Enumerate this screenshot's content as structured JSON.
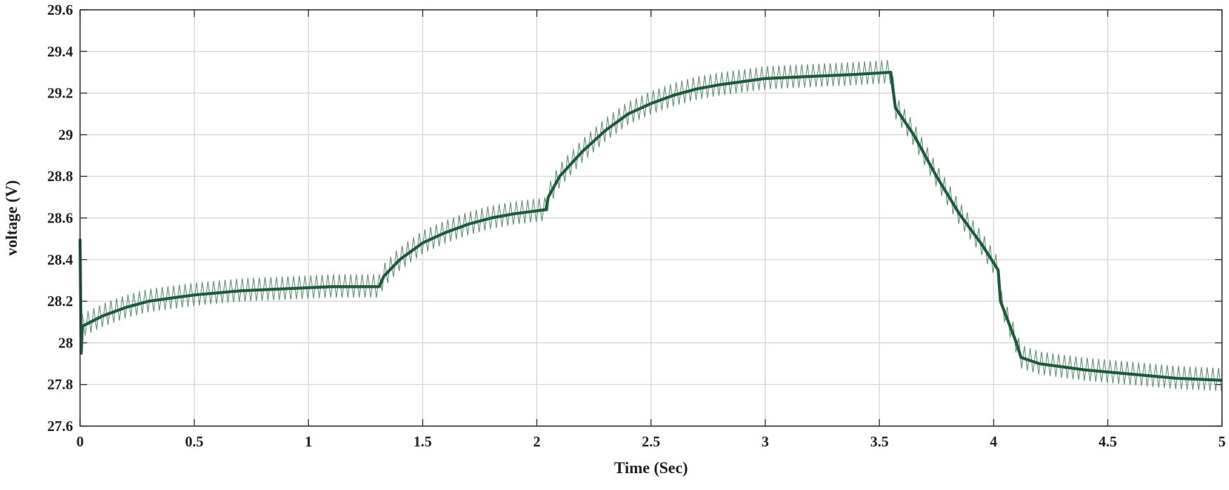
{
  "chart_data": {
    "type": "line",
    "title": "",
    "xlabel": "Time (Sec)",
    "ylabel": "voltage (V)",
    "xlim": [
      0,
      5
    ],
    "ylim": [
      27.6,
      29.6
    ],
    "xticks": [
      0,
      0.5,
      1,
      1.5,
      2,
      2.5,
      3,
      3.5,
      4,
      4.5,
      5
    ],
    "xtick_labels": [
      "0",
      "0.5",
      "1",
      "1.5",
      "2",
      "2.5",
      "3",
      "3.5",
      "4",
      "4.5",
      "5"
    ],
    "yticks": [
      27.6,
      27.8,
      28,
      28.2,
      28.4,
      28.6,
      28.8,
      29,
      29.2,
      29.4,
      29.6
    ],
    "ytick_labels": [
      "27.6",
      "27.8",
      "28",
      "28.2",
      "28.4",
      "28.6",
      "28.8",
      "29",
      "29.2",
      "29.4",
      "29.6"
    ],
    "grid": true,
    "legend": "none",
    "series": [
      {
        "color": "#1f5a3c",
        "ripple_amplitude": 0.07,
        "x": [
          0,
          0.005,
          0.01,
          0.1,
          0.2,
          0.3,
          0.5,
          0.7,
          0.9,
          1.1,
          1.31,
          1.33,
          1.4,
          1.5,
          1.6,
          1.7,
          1.8,
          1.9,
          2.04,
          2.05,
          2.1,
          2.2,
          2.3,
          2.4,
          2.5,
          2.6,
          2.7,
          2.8,
          3.0,
          3.2,
          3.4,
          3.55,
          3.57,
          3.65,
          3.75,
          3.85,
          3.95,
          4.02,
          4.03,
          4.1,
          4.12,
          4.2,
          4.4,
          4.6,
          4.8,
          5.0
        ],
        "y": [
          28.5,
          27.95,
          28.08,
          28.13,
          28.17,
          28.2,
          28.23,
          28.25,
          28.26,
          28.27,
          28.27,
          28.32,
          28.4,
          28.48,
          28.53,
          28.57,
          28.6,
          28.62,
          28.64,
          28.7,
          28.8,
          28.92,
          29.02,
          29.1,
          29.15,
          29.19,
          29.22,
          29.24,
          29.27,
          29.28,
          29.29,
          29.3,
          29.13,
          29.0,
          28.8,
          28.62,
          28.47,
          28.35,
          28.2,
          28.0,
          27.93,
          27.9,
          27.87,
          27.85,
          27.83,
          27.82
        ]
      }
    ]
  }
}
